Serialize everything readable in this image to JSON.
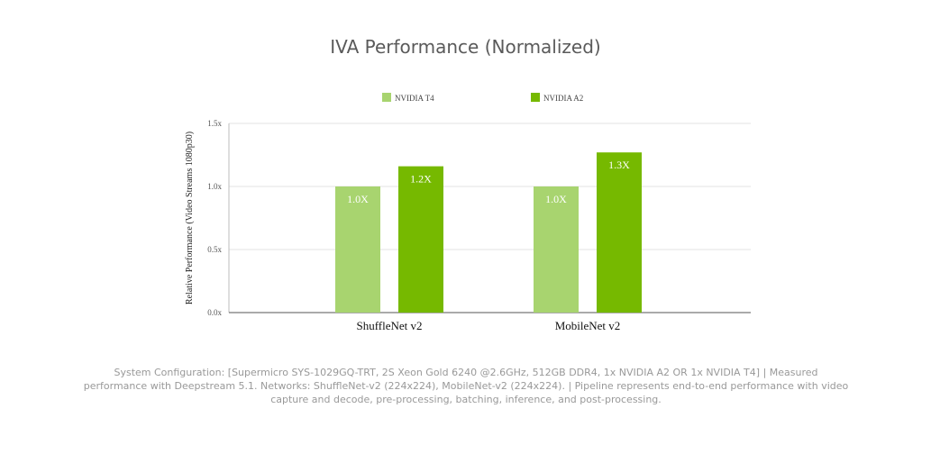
{
  "chart_data": {
    "type": "bar",
    "title": "IVA Performance (Normalized)",
    "xlabel": "",
    "ylabel": "Relative Performance (Video Streams 1080p30)",
    "categories": [
      "ShuffleNet v2",
      "MobileNet v2"
    ],
    "series": [
      {
        "name": "NVIDIA T4",
        "color": "#a8d46f",
        "values": [
          1.0,
          1.0
        ],
        "labels": [
          "1.0X",
          "1.0X"
        ]
      },
      {
        "name": "NVIDIA A2",
        "color": "#76b900",
        "values": [
          1.16,
          1.27
        ],
        "labels": [
          "1.2X",
          "1.3X"
        ]
      }
    ],
    "ylim": [
      0,
      1.5
    ],
    "yticks": [
      0,
      0.5,
      1.0,
      1.5
    ],
    "ytick_labels": [
      "0.0x",
      "0.5x",
      "1.0x",
      "1.5x"
    ],
    "grid": true,
    "legend": "top-center"
  },
  "footnote": "System Configuration: [Supermicro SYS-1029GQ-TRT, 2S Xeon Gold 6240 @2.6GHz, 512GB DDR4, 1x NVIDIA A2 OR 1x NVIDIA T4] | Measured performance with Deepstream 5.1. Networks: ShuffleNet-v2 (224x224), MobileNet-v2 (224x224). | Pipeline represents end-to-end performance with video capture and decode, pre-processing, batching, inference, and post-processing."
}
